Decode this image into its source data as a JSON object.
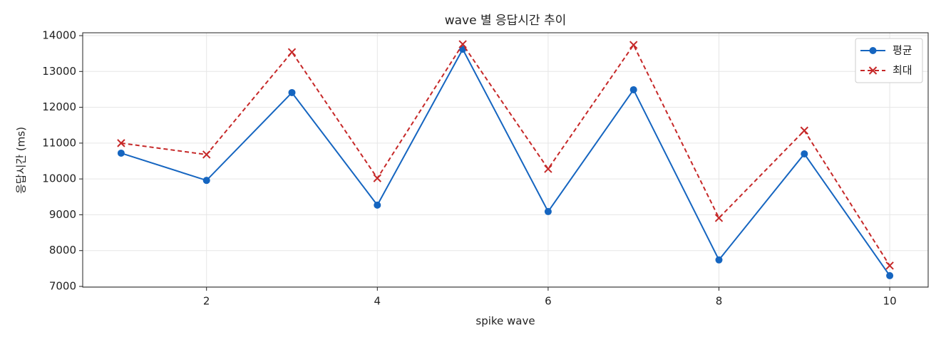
{
  "chart_data": {
    "type": "line",
    "title": "wave 별 응답시간 추이",
    "x_label": "spike wave",
    "y_label": "응답시간 (ms)",
    "x": [
      1,
      2,
      3,
      4,
      5,
      6,
      7,
      8,
      9,
      10
    ],
    "series": [
      {
        "name": "평균",
        "color": "#1565c0",
        "linestyle": "solid",
        "marker": "circle",
        "values": [
          10720,
          9960,
          12410,
          9270,
          13620,
          9090,
          12490,
          7740,
          10700,
          7300
        ]
      },
      {
        "name": "최대",
        "color": "#c62828",
        "linestyle": "dashed",
        "marker": "x",
        "values": [
          11000,
          10680,
          13540,
          10020,
          13760,
          10280,
          13740,
          8910,
          11350,
          7580
        ]
      }
    ],
    "xlim": [
      0.55,
      10.45
    ],
    "xticks": [
      2,
      4,
      6,
      8,
      10
    ],
    "ylim": [
      6980,
      14080
    ],
    "yticks": [
      7000,
      8000,
      9000,
      10000,
      11000,
      12000,
      13000,
      14000
    ],
    "grid": true,
    "legend": "upper-right"
  }
}
